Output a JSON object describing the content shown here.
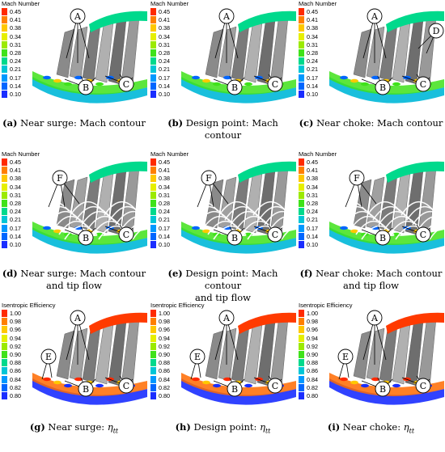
{
  "rows": [
    {
      "legend_title": "Mach Number",
      "ticks": [
        "0.45",
        "0.41",
        "0.38",
        "0.34",
        "0.31",
        "0.28",
        "0.24",
        "0.21",
        "0.17",
        "0.14",
        "0.10"
      ],
      "colors": [
        "#ff2a00",
        "#ff7f00",
        "#ffc800",
        "#e6ef00",
        "#9bea00",
        "#3fe21a",
        "#00d98c",
        "#00c6d6",
        "#0099ff",
        "#0066ff",
        "#1a2dff"
      ]
    },
    {
      "legend_title": "Mach Number",
      "ticks": [
        "0.45",
        "0.41",
        "0.38",
        "0.34",
        "0.31",
        "0.28",
        "0.24",
        "0.21",
        "0.17",
        "0.14",
        "0.10"
      ],
      "colors": [
        "#ff2a00",
        "#ff7f00",
        "#ffc800",
        "#e6ef00",
        "#9bea00",
        "#3fe21a",
        "#00d98c",
        "#00c6d6",
        "#0099ff",
        "#0066ff",
        "#1a2dff"
      ]
    },
    {
      "legend_title": "Isentropic Efficiency",
      "ticks": [
        "1.00",
        "0.98",
        "0.96",
        "0.94",
        "0.92",
        "0.90",
        "0.88",
        "0.86",
        "0.84",
        "0.82",
        "0.80"
      ],
      "colors": [
        "#ff2a00",
        "#ff7f00",
        "#ffc800",
        "#e6ef00",
        "#9bea00",
        "#3fe21a",
        "#00d98c",
        "#00c6d6",
        "#0099ff",
        "#0066ff",
        "#1a2dff"
      ]
    }
  ],
  "panels": [
    {
      "id": "a",
      "letter": "(a)",
      "text": "Near surge: Mach contour",
      "line2": "",
      "markers": [
        "A",
        "B",
        "C"
      ]
    },
    {
      "id": "b",
      "letter": "(b)",
      "text": "Design point: Mach contour",
      "line2": "",
      "markers": [
        "A",
        "B",
        "C"
      ]
    },
    {
      "id": "c",
      "letter": "(c)",
      "text": "Near choke: Mach contour",
      "line2": "",
      "markers": [
        "A",
        "B",
        "C",
        "D"
      ]
    },
    {
      "id": "d",
      "letter": "(d)",
      "text": "Near surge: Mach contour",
      "line2": "and tip flow",
      "markers": [
        "F",
        "B",
        "C"
      ]
    },
    {
      "id": "e",
      "letter": "(e)",
      "text": "Design point: Mach contour",
      "line2": "and tip flow",
      "markers": [
        "F",
        "B",
        "C"
      ]
    },
    {
      "id": "f",
      "letter": "(f)",
      "text": "Near choke: Mach contour",
      "line2": "and tip flow",
      "markers": [
        "F",
        "B",
        "C"
      ]
    },
    {
      "id": "g",
      "letter": "(g)",
      "text": "Near surge: ",
      "sym": "η",
      "sub": "tt",
      "markers": [
        "A",
        "E",
        "B",
        "C"
      ]
    },
    {
      "id": "h",
      "letter": "(h)",
      "text": "Design point: ",
      "sym": "η",
      "sub": "tt",
      "markers": [
        "A",
        "E",
        "B",
        "C"
      ]
    },
    {
      "id": "i",
      "letter": "(i)",
      "text": "Near choke: ",
      "sym": "η",
      "sub": "tt",
      "markers": [
        "A",
        "E",
        "B",
        "C"
      ]
    }
  ]
}
